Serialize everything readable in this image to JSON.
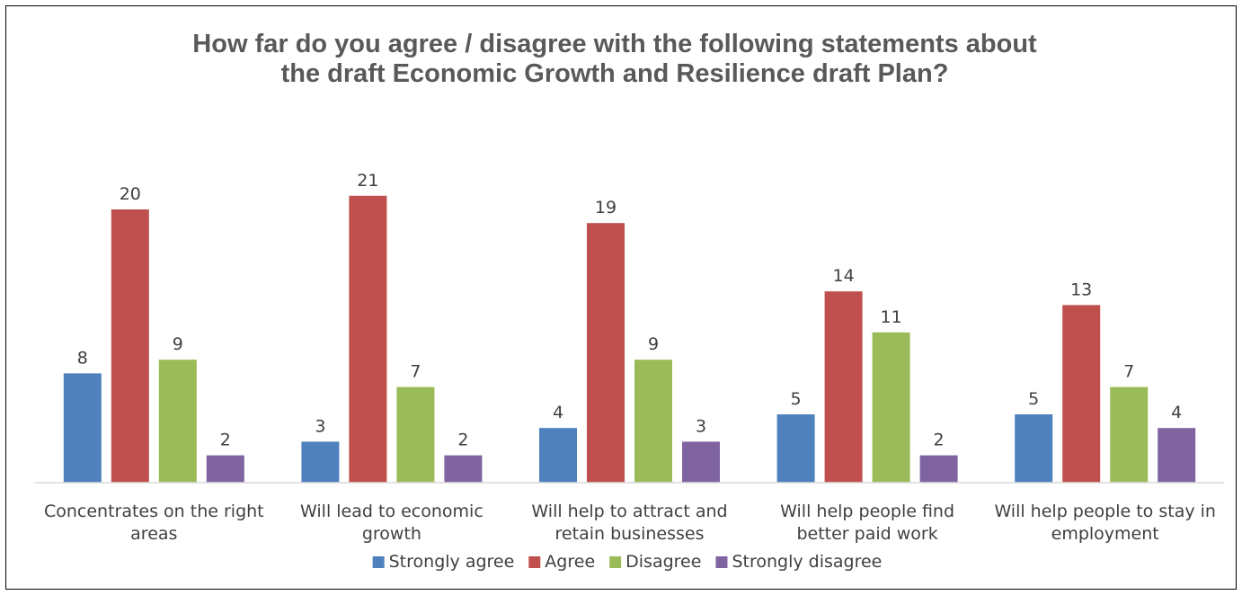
{
  "chart_data": {
    "type": "bar",
    "title": "How far do you agree / disagree with the following statements about the draft Economic Growth and Resilience draft Plan?",
    "title_lines": [
      "How far do you agree / disagree with the following statements about",
      "the draft Economic Growth and Resilience draft Plan?"
    ],
    "categories": [
      "Concentrates on the right areas",
      "Will lead to economic growth",
      "Will help to attract and retain businesses",
      "Will help people find better paid work",
      "Will help people to stay in employment"
    ],
    "category_lines": [
      [
        "Concentrates on the right",
        "areas"
      ],
      [
        "Will lead to economic",
        "growth"
      ],
      [
        "Will help to attract and",
        "retain businesses"
      ],
      [
        "Will help people find",
        "better paid work"
      ],
      [
        "Will help people to stay in",
        "employment"
      ]
    ],
    "series": [
      {
        "name": "Strongly agree",
        "color": "#4F81BD",
        "values": [
          8,
          3,
          4,
          5,
          5
        ]
      },
      {
        "name": "Agree",
        "color": "#C0504D",
        "values": [
          20,
          21,
          19,
          14,
          13
        ]
      },
      {
        "name": "Disagree",
        "color": "#9BBB59",
        "values": [
          9,
          7,
          9,
          11,
          7
        ]
      },
      {
        "name": "Strongly disagree",
        "color": "#8064A2",
        "values": [
          2,
          2,
          3,
          2,
          4
        ]
      }
    ],
    "xlabel": "",
    "ylabel": "",
    "ylim": [
      0,
      22
    ],
    "grid": false,
    "data_labels": true,
    "legend_position": "bottom",
    "axis_color": "#D9D9D9"
  }
}
